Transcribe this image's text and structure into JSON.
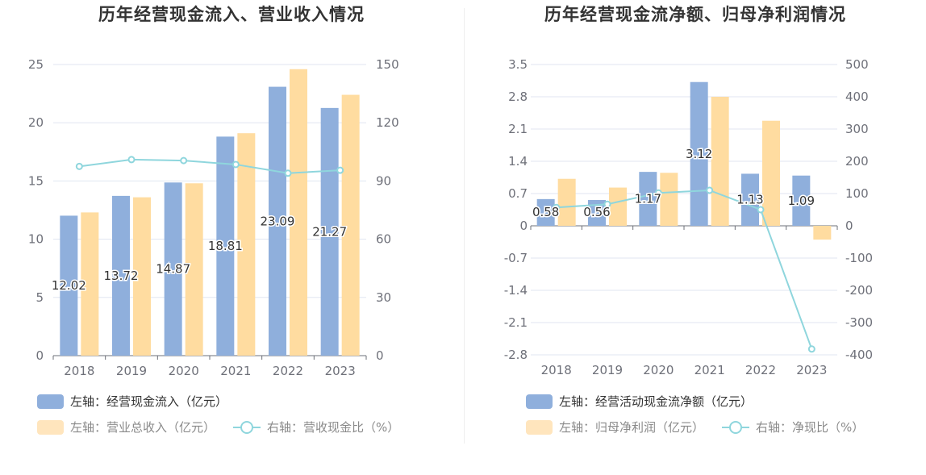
{
  "colors": {
    "bar1": "#8fafdc",
    "bar2": "#ffdca0",
    "line": "#8fd6dd",
    "axis": "#6e7079",
    "grid": "#e0e6f1"
  },
  "chart_data": [
    {
      "type": "bar",
      "title": "历年经营现金流入、营业收入情况",
      "categories": [
        "2018",
        "2019",
        "2020",
        "2021",
        "2022",
        "2023"
      ],
      "series": [
        {
          "name": "左轴：经营现金流入（亿元）",
          "axis": "left",
          "values": [
            12.02,
            13.72,
            14.87,
            18.81,
            23.09,
            21.27
          ],
          "labels": [
            "12.02",
            "13.72",
            "14.87",
            "18.81",
            "23.09",
            "21.27"
          ]
        },
        {
          "name": "左轴：营业总收入（亿元）",
          "axis": "left",
          "values": [
            12.3,
            13.6,
            14.8,
            19.1,
            24.6,
            22.4
          ]
        },
        {
          "name": "右轴：营收现金比（%）",
          "axis": "right",
          "type": "line",
          "values": [
            97.5,
            101,
            100.5,
            98.5,
            94,
            95.5
          ]
        }
      ],
      "left_axis": {
        "ylim": [
          0,
          25
        ],
        "ticks": [
          "0",
          "5",
          "10",
          "15",
          "20",
          "25"
        ]
      },
      "right_axis": {
        "ylim": [
          0,
          150
        ],
        "ticks": [
          "0",
          "30",
          "60",
          "90",
          "120",
          "150"
        ]
      },
      "legend": "bottom-left"
    },
    {
      "type": "bar",
      "title": "历年经营现金流净额、归母净利润情况",
      "categories": [
        "2018",
        "2019",
        "2020",
        "2021",
        "2022",
        "2023"
      ],
      "series": [
        {
          "name": "左轴：经营活动现金流净额（亿元）",
          "axis": "left",
          "values": [
            0.58,
            0.56,
            1.17,
            3.12,
            1.13,
            1.09
          ],
          "labels": [
            "0.58",
            "0.56",
            "1.17",
            "3.12",
            "1.13",
            "1.09"
          ]
        },
        {
          "name": "左轴：归母净利润（亿元）",
          "axis": "left",
          "values": [
            1.02,
            0.83,
            1.15,
            2.8,
            2.28,
            -0.3
          ]
        },
        {
          "name": "右轴：净现比（%）",
          "axis": "right",
          "type": "line",
          "values": [
            57,
            67,
            102,
            110,
            50,
            -382
          ]
        }
      ],
      "left_axis": {
        "ylim": [
          -2.8,
          3.5
        ],
        "ticks": [
          "-2.8",
          "-2.1",
          "-1.4",
          "-0.7",
          "0",
          "0.7",
          "1.4",
          "2.1",
          "2.8",
          "3.5"
        ]
      },
      "right_axis": {
        "ylim": [
          -400,
          500
        ],
        "ticks": [
          "-400",
          "-300",
          "-200",
          "-100",
          "0",
          "100",
          "200",
          "300",
          "400",
          "500"
        ]
      },
      "legend": "bottom-left"
    }
  ]
}
